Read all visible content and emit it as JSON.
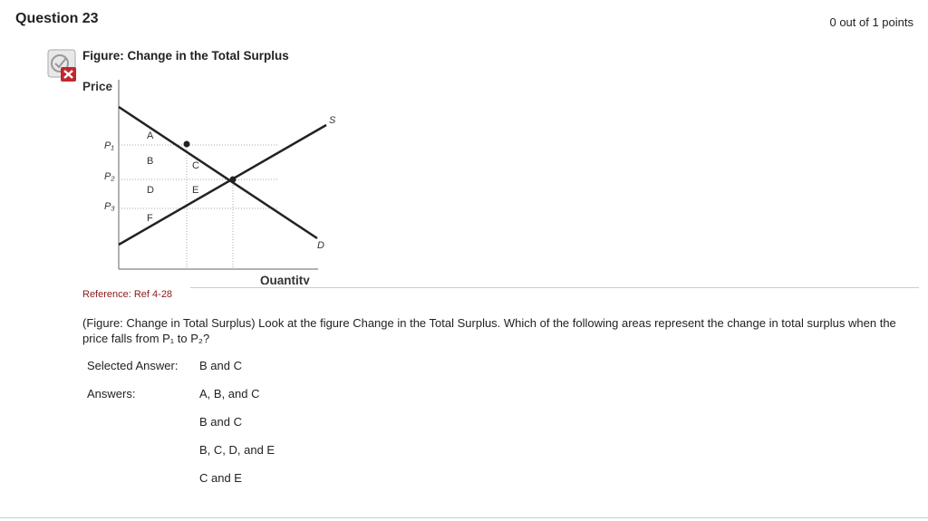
{
  "header": {
    "title": "Question 23",
    "score": "0 out of 1 points"
  },
  "figure": {
    "title": "Figure: Change in the Total Surplus",
    "y_axis_label": "Price",
    "x_axis_label": "Quantity",
    "price_labels": [
      "P₁",
      "P₂",
      "P₃"
    ],
    "area_labels": [
      "A",
      "B",
      "C",
      "D",
      "E",
      "F"
    ],
    "supply_label": "S",
    "demand_label": "D"
  },
  "reference": "Reference: Ref 4-28",
  "question": "(Figure: Change in Total Surplus) Look at the figure Change in the Total Surplus. Which of the following areas represent the change in total surplus when the price falls from P₁ to P₂?",
  "selected": {
    "label": "Selected Answer:",
    "answer": "B and C"
  },
  "answers": {
    "label": "Answers:",
    "options": [
      "A, B, and C",
      "B and C",
      "B, C, D, and E",
      "C and E"
    ]
  }
}
